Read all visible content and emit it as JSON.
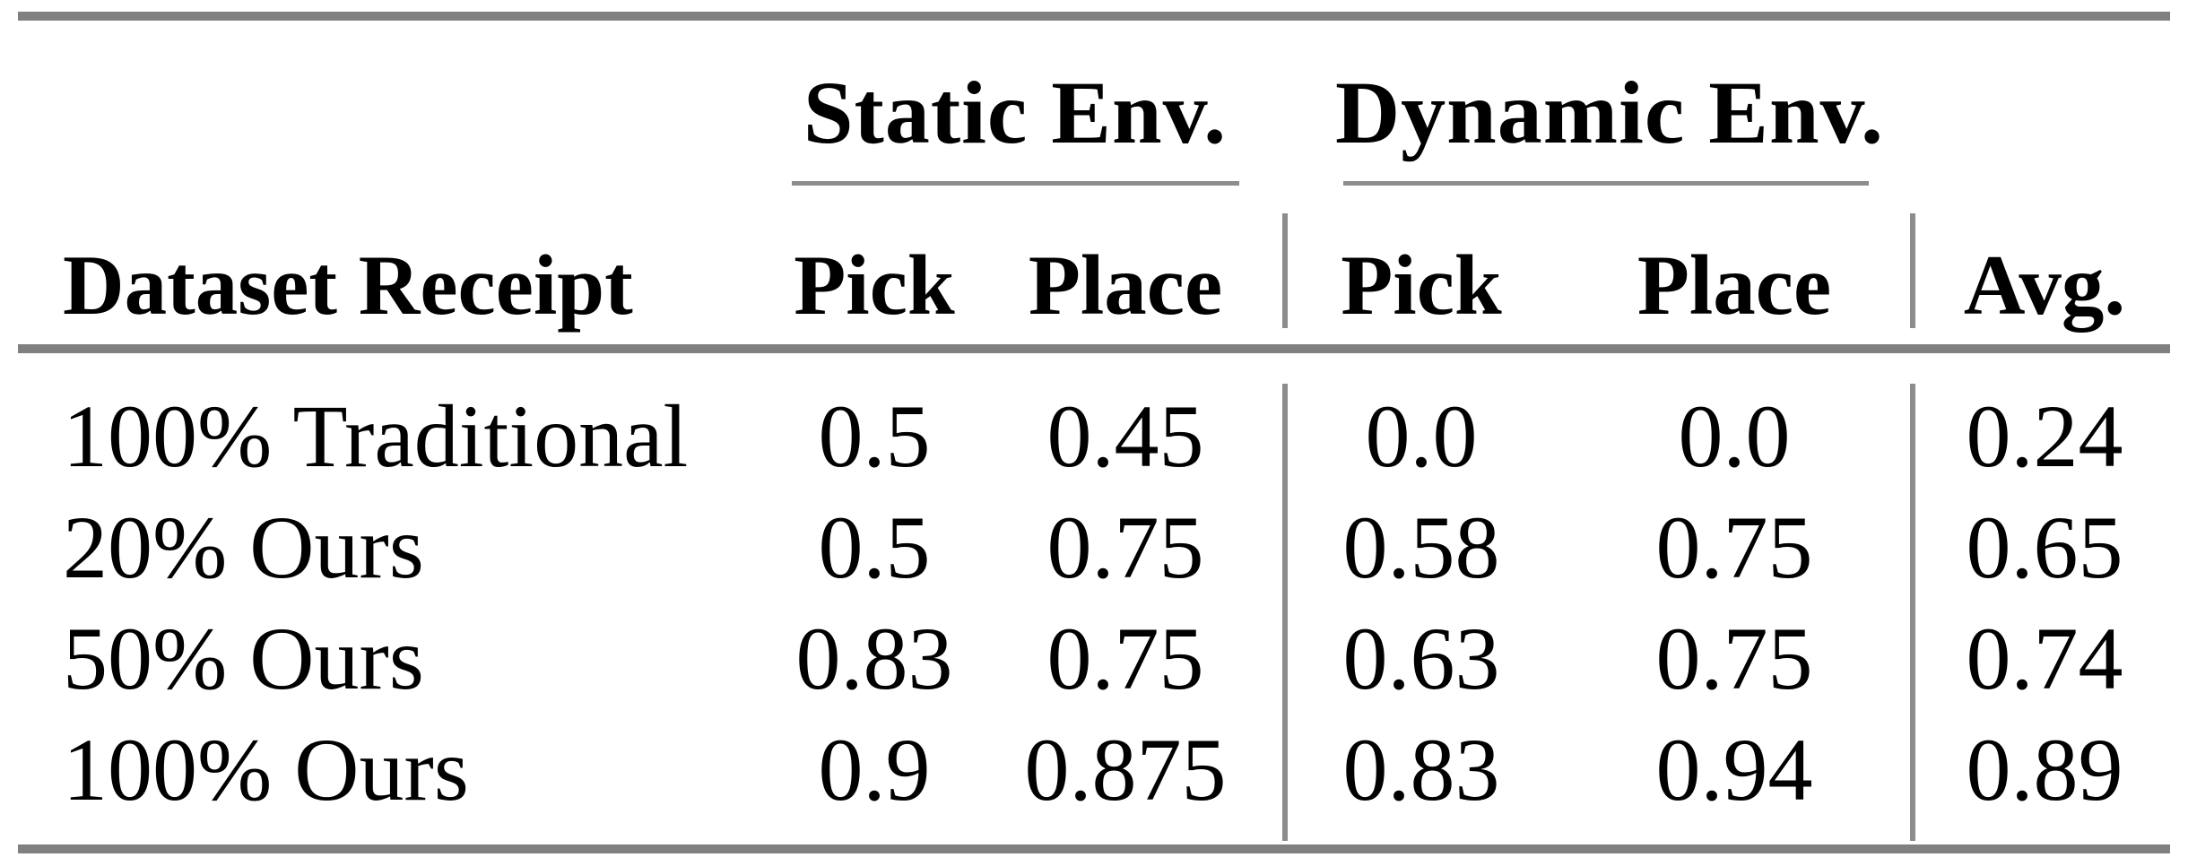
{
  "table": {
    "col_groups": [
      {
        "label": "Static Env."
      },
      {
        "label": "Dynamic Env."
      }
    ],
    "columns": [
      "Dataset Receipt",
      "Pick",
      "Place",
      "Pick",
      "Place",
      "Avg."
    ],
    "rows": [
      {
        "cells": [
          "100% Traditional",
          "0.5",
          "0.45",
          "0.0",
          "0.0",
          "0.24"
        ]
      },
      {
        "cells": [
          "20% Ours",
          "0.5",
          "0.75",
          "0.58",
          "0.75",
          "0.65"
        ]
      },
      {
        "cells": [
          "50% Ours",
          "0.83",
          "0.75",
          "0.63",
          "0.75",
          "0.74"
        ]
      },
      {
        "cells": [
          "100% Ours",
          "0.9",
          "0.875",
          "0.83",
          "0.94",
          "0.89"
        ]
      }
    ]
  },
  "colors": {
    "rule_gray": "#808080",
    "thin_rule_gray": "#8c8c8c",
    "text": "#000000",
    "background": "#ffffff"
  },
  "chart_data": {
    "type": "table",
    "title": "",
    "column_groups": [
      "Static Env.",
      "Dynamic Env."
    ],
    "columns": [
      "Dataset Receipt",
      "Static Pick",
      "Static Place",
      "Dynamic Pick",
      "Dynamic Place",
      "Avg."
    ],
    "rows": [
      [
        "100% Traditional",
        0.5,
        0.45,
        0.0,
        0.0,
        0.24
      ],
      [
        "20% Ours",
        0.5,
        0.75,
        0.58,
        0.75,
        0.65
      ],
      [
        "50% Ours",
        0.83,
        0.75,
        0.63,
        0.75,
        0.74
      ],
      [
        "100% Ours",
        0.9,
        0.875,
        0.83,
        0.94,
        0.89
      ]
    ]
  }
}
